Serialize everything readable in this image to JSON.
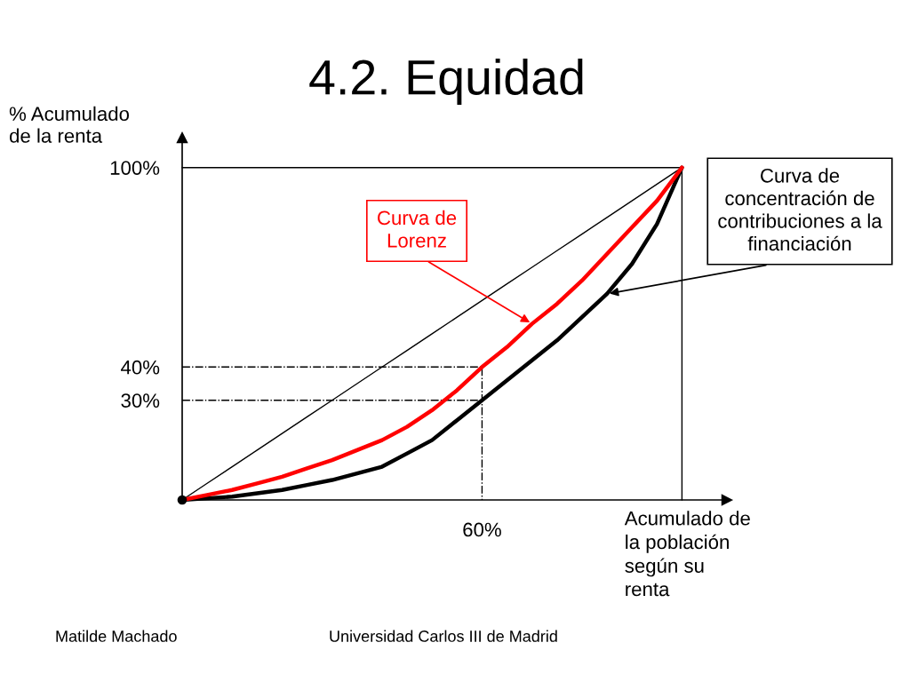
{
  "chart_data": {
    "type": "line",
    "title": "4.2. Equidad",
    "xlabel": "Acumulado de\nla población\nsegún su\nrenta",
    "ylabel": "% Acumulado\nde la renta",
    "categories": [
      null,
      null,
      null,
      null,
      null,
      null,
      null,
      null,
      null,
      null,
      null,
      null,
      "60%",
      null,
      null,
      null,
      null,
      null,
      null,
      null,
      null
    ],
    "ylim": [
      0,
      109
    ],
    "yticks": [
      {
        "value": 30,
        "label": "30%"
      },
      {
        "value": 40,
        "label": "40%"
      },
      {
        "value": 100,
        "label": "100%"
      }
    ],
    "series": [
      {
        "type": "step",
        "color": "#000000",
        "values": [
          100,
          100,
          100,
          100,
          100,
          100,
          100,
          100,
          100,
          100,
          100,
          100,
          100,
          100,
          100,
          100,
          100,
          100,
          100,
          100,
          0
        ]
      },
      {
        "color": "#000000",
        "values": [
          0,
          5,
          10,
          15,
          20,
          25,
          30,
          35,
          40,
          45,
          50,
          55,
          60,
          65,
          70,
          75,
          80,
          85,
          90,
          95,
          100
        ]
      },
      {
        "type": "step",
        "color": "#000000",
        "values": [
          40,
          40,
          40,
          40,
          40,
          40,
          40,
          40,
          40,
          40,
          40,
          40,
          0,
          null,
          null,
          null,
          null,
          null,
          null,
          null,
          null
        ],
        "line_style": "dashed"
      },
      {
        "color": "#000000",
        "values": [
          30,
          30,
          30,
          30,
          30,
          30,
          30,
          30,
          30,
          30,
          30,
          30,
          30,
          null,
          null,
          null,
          null,
          null,
          null,
          null,
          null
        ],
        "line_style": "dashed"
      },
      {
        "name": "Curva de\nconcentración de\ncontribuciones a la\nfinanciación",
        "color": "#000000",
        "values": [
          0,
          0.5,
          1,
          2,
          3,
          4.5,
          6,
          8,
          10,
          14,
          18,
          24,
          30,
          36,
          42,
          48,
          55,
          62,
          71,
          83,
          100
        ]
      },
      {
        "name": "Curva de\nLorenz",
        "color": "#ff0000",
        "values": [
          0,
          1.5,
          3,
          5,
          7,
          9.5,
          12,
          15,
          18,
          22,
          27,
          33,
          40,
          46,
          53,
          59,
          66,
          74,
          82,
          90,
          100
        ]
      },
      {
        "type": "scatter",
        "color": "#000000",
        "values": [
          0,
          null,
          null,
          null,
          null,
          null,
          null,
          null,
          null,
          null,
          null,
          null,
          null,
          null,
          null,
          null,
          null,
          null,
          null,
          null,
          null
        ],
        "marker": "circle"
      }
    ],
    "annotations": [
      "Matilde Machado",
      "Universidad Carlos III de Madrid"
    ]
  }
}
